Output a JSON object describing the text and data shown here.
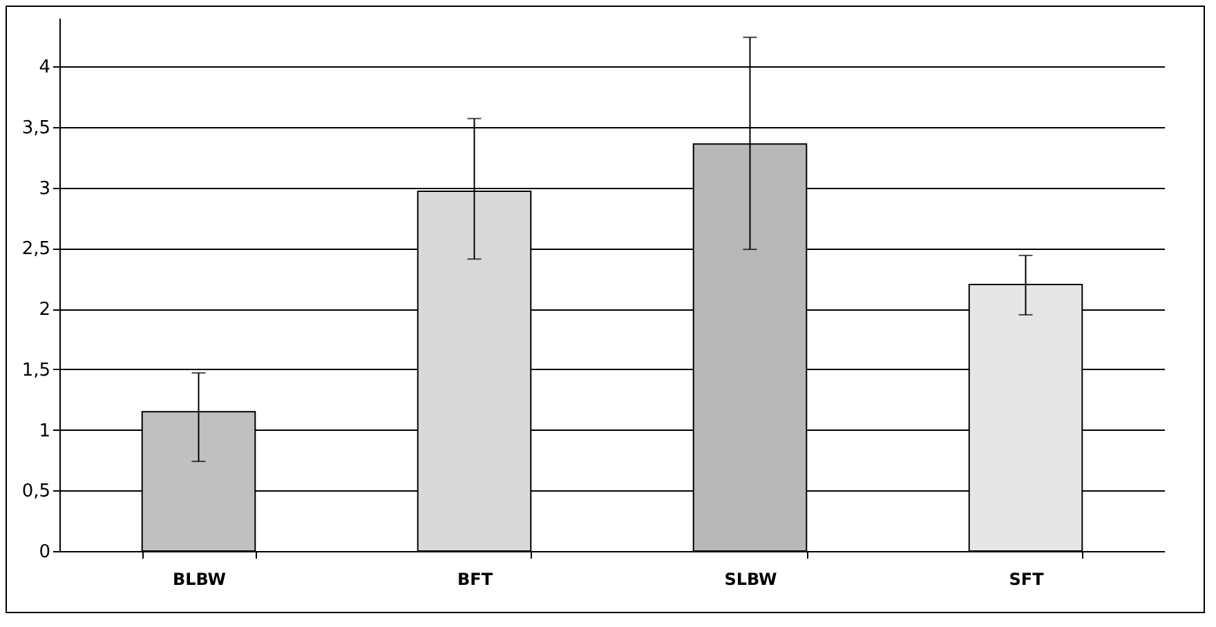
{
  "chart_data": {
    "type": "bar",
    "categories": [
      "BLBW",
      "BFT",
      "SLBW",
      "SFT"
    ],
    "values": [
      1.15,
      2.97,
      3.36,
      2.2
    ],
    "colors": [
      "#c0c0c0",
      "#d9d9d9",
      "#b8b8b8",
      "#e6e6e6"
    ],
    "errors": [
      [
        0.74,
        1.47
      ],
      [
        2.41,
        3.57
      ],
      [
        2.49,
        4.24
      ],
      [
        1.95,
        2.44
      ]
    ],
    "ylim": [
      0,
      4.4
    ],
    "yticks": [
      0,
      {
        "value": 0.5,
        "label": "0,5"
      },
      1,
      {
        "value": 1.5,
        "label": "1,5"
      },
      2,
      {
        "value": 2.5,
        "label": "2,5"
      },
      3,
      {
        "value": 3.5,
        "label": "3,5"
      },
      4
    ],
    "grid": "y",
    "legend": false
  }
}
